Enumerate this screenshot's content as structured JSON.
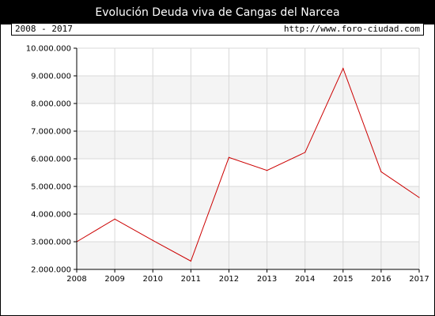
{
  "header": {
    "title": "Evolución Deuda viva de Cangas del Narcea",
    "period": "2008 - 2017",
    "url": "http://www.foro-ciudad.com"
  },
  "colors": {
    "line": "#cc0000",
    "band": "#f4f4f4",
    "grid": "#d8d8d8"
  },
  "chart_data": {
    "type": "line",
    "title": "Evolución Deuda viva de Cangas del Narcea",
    "xlabel": "",
    "ylabel": "",
    "x": [
      "2008",
      "2009",
      "2010",
      "2011",
      "2012",
      "2013",
      "2014",
      "2015",
      "2016",
      "2017"
    ],
    "values": [
      3000000,
      3820000,
      3050000,
      2300000,
      6050000,
      5580000,
      6230000,
      9270000,
      5530000,
      4600000
    ],
    "ylim": [
      2000000,
      10000000
    ],
    "yticks": [
      {
        "value": 2000000,
        "label": "2.000.000"
      },
      {
        "value": 3000000,
        "label": "3.000.000"
      },
      {
        "value": 4000000,
        "label": "4.000.000"
      },
      {
        "value": 5000000,
        "label": "5.000.000"
      },
      {
        "value": 6000000,
        "label": "6.000.000"
      },
      {
        "value": 7000000,
        "label": "7.000.000"
      },
      {
        "value": 8000000,
        "label": "8.000.000"
      },
      {
        "value": 9000000,
        "label": "9.000.000"
      },
      {
        "value": 10000000,
        "label": "10.000.000"
      }
    ],
    "grid": true,
    "legend": "none"
  }
}
